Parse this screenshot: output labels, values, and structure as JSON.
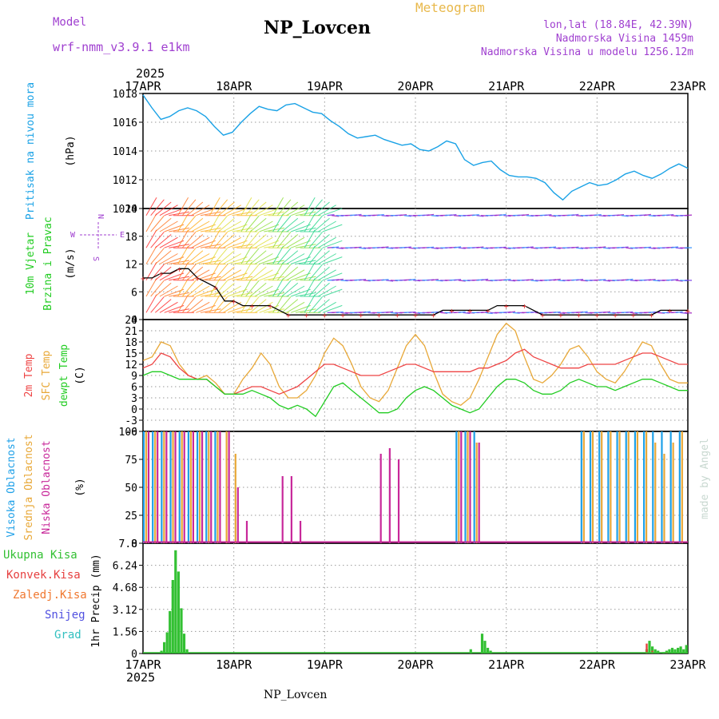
{
  "header": {
    "model_label": "Model",
    "model_name": "wrf-nmm_v3.9.1  e1km",
    "station": "NP_Lovcen",
    "app_title": "Meteogram",
    "lonlat": "lon,lat (18.84E, 42.39N)",
    "altitude": "Nadmorska Visina 1459m",
    "model_altitude": "Nadmorska Visina u modelu 1256.12m"
  },
  "footer": {
    "station": "NP_Lovcen",
    "watermark": "made by Angel"
  },
  "time_axis": {
    "year": "2025",
    "ticks": [
      "17APR",
      "18APR",
      "19APR",
      "20APR",
      "21APR",
      "22APR",
      "23APR"
    ]
  },
  "panel_labels": {
    "pressure": [
      "Pritisak na nivou mora"
    ],
    "pressure_unit": "(hPa)",
    "wind": [
      "10m Vjetar",
      "Brzina i Pravac"
    ],
    "wind_unit": "(m/s)",
    "compass": {
      "n": "N",
      "s": "S",
      "e": "E",
      "w": "W"
    },
    "temp": [
      "2m Temp",
      "SFC Temp",
      "dewpt Temp"
    ],
    "temp_unit": "(C)",
    "cloud": [
      "Visoka Oblacnost",
      "Srednja Oblacnost",
      "Niska Oblacnost"
    ],
    "cloud_unit": "(%)",
    "precip_legend": [
      "Ukupna Kisa",
      "Konvek.Kisa",
      "Zaledj.Kisa",
      "Snijeg",
      "Grad"
    ],
    "precip_unit": "1hr Precip (mm)"
  },
  "colors": {
    "pressure": "#1aa2e6",
    "temp2m": "#ee4444",
    "sfc": "#e8a838",
    "dewpt": "#22cc22",
    "cloud_high": "#1ea0e8",
    "cloud_mid": "#e8a838",
    "cloud_low": "#c8289a",
    "precip_total": "#33c033",
    "precip_conv": "#e64040",
    "precip_frz": "#f07830",
    "precip_snow": "#5050e0",
    "precip_hail": "#33c0c0",
    "model": "#a040d0",
    "title_accent": "#e8b84a"
  },
  "chart_data": [
    {
      "type": "line",
      "panel": "pressure",
      "ylim": [
        1010,
        1018
      ],
      "yticks": [
        "1018",
        "1016",
        "1014",
        "1012",
        "1010"
      ],
      "grid": true,
      "series": [
        {
          "values": [
            1017.9,
            1017.0,
            1016.2,
            1016.4,
            1016.8,
            1017.0,
            1016.8,
            1016.4,
            1015.7,
            1015.1,
            1015.3,
            1016.0,
            1016.6,
            1017.1,
            1016.9,
            1016.8,
            1017.2,
            1017.3,
            1017.0,
            1016.7,
            1016.6,
            1016.1,
            1015.7,
            1015.2,
            1014.9,
            1015.0,
            1015.1,
            1014.8,
            1014.6,
            1014.4,
            1014.5,
            1014.1,
            1014.0,
            1014.3,
            1014.7,
            1014.5,
            1013.4,
            1013.0,
            1013.2,
            1013.3,
            1012.7,
            1012.3,
            1012.2,
            1012.2,
            1012.1,
            1011.8,
            1011.1,
            1010.6,
            1011.2,
            1011.5,
            1011.8,
            1011.6,
            1011.7,
            1012.0,
            1012.4,
            1012.6,
            1012.3,
            1012.1,
            1012.4,
            1012.8,
            1013.1,
            1012.8
          ]
        }
      ]
    },
    {
      "type": "line",
      "panel": "wind",
      "ylim": [
        0,
        24
      ],
      "yticks": [
        "24",
        "18",
        "12",
        "6",
        "0"
      ],
      "grid": true,
      "series": [
        {
          "values": [
            9,
            9,
            10,
            10,
            11,
            11,
            9,
            8,
            7,
            4,
            4,
            3,
            3,
            3,
            3,
            2,
            1,
            1,
            1,
            1,
            1,
            1,
            1,
            1,
            1,
            1,
            1,
            1,
            1,
            1,
            1,
            1,
            1,
            2,
            2,
            2,
            2,
            2,
            2,
            3,
            3,
            3,
            3,
            2,
            1,
            1,
            1,
            1,
            1,
            1,
            1,
            1,
            1,
            1,
            1,
            1,
            1,
            2,
            2,
            2,
            2
          ]
        }
      ]
    },
    {
      "type": "line",
      "panel": "temperature",
      "ylim": [
        -6,
        24
      ],
      "yticks": [
        "24",
        "21",
        "18",
        "15",
        "12",
        "9",
        "6",
        "3",
        "0",
        "-3",
        "-6"
      ],
      "grid": true,
      "series": [
        {
          "name": "2m Temp",
          "values": [
            11,
            12,
            15,
            14,
            11,
            9,
            8,
            8,
            6,
            4,
            4,
            5,
            6,
            6,
            5,
            4,
            5,
            6,
            8,
            10,
            12,
            12,
            11,
            10,
            9,
            9,
            9,
            10,
            11,
            12,
            12,
            11,
            10,
            10,
            10,
            10,
            10,
            11,
            11,
            12,
            13,
            15,
            16,
            14,
            13,
            12,
            11,
            11,
            11,
            12,
            12,
            12,
            12,
            13,
            14,
            15,
            15,
            14,
            13,
            12,
            12
          ]
        },
        {
          "name": "SFC Temp",
          "values": [
            13,
            14,
            18,
            17,
            12,
            9,
            8,
            9,
            7,
            4,
            4,
            8,
            11,
            15,
            12,
            6,
            3,
            3,
            5,
            9,
            15,
            19,
            17,
            12,
            6,
            3,
            2,
            5,
            11,
            17,
            20,
            17,
            10,
            4,
            2,
            1,
            3,
            8,
            14,
            20,
            23,
            21,
            14,
            8,
            7,
            9,
            12,
            16,
            17,
            14,
            10,
            8,
            7,
            10,
            14,
            18,
            17,
            12,
            8,
            7,
            7
          ]
        },
        {
          "name": "dewpt Temp",
          "values": [
            9,
            10,
            10,
            9,
            8,
            8,
            8,
            8,
            6,
            4,
            4,
            4,
            5,
            4,
            3,
            1,
            0,
            1,
            0,
            -2,
            2,
            6,
            7,
            5,
            3,
            1,
            -1,
            -1,
            0,
            3,
            5,
            6,
            5,
            3,
            1,
            0,
            -1,
            0,
            3,
            6,
            8,
            8,
            7,
            5,
            4,
            4,
            5,
            7,
            8,
            7,
            6,
            6,
            5,
            6,
            7,
            8,
            8,
            7,
            6,
            5,
            5
          ]
        }
      ]
    },
    {
      "type": "bar",
      "panel": "cloud",
      "ylim": [
        0,
        100
      ],
      "yticks": [
        "100",
        "75",
        "50",
        "25",
        "0"
      ],
      "grid": true,
      "series": [
        {
          "name": "Visoka Oblacnost",
          "values": [
            100,
            100,
            100,
            100,
            100,
            100,
            100,
            100,
            100,
            0,
            0,
            0,
            0,
            0,
            0,
            0,
            0,
            0,
            0,
            0,
            0,
            0,
            0,
            0,
            0,
            0,
            0,
            0,
            0,
            0,
            0,
            0,
            0,
            0,
            0,
            100,
            100,
            100,
            0,
            0,
            0,
            0,
            0,
            0,
            0,
            0,
            0,
            0,
            0,
            100,
            100,
            100,
            100,
            100,
            100,
            100,
            100,
            100,
            100,
            100,
            100
          ]
        },
        {
          "name": "Srednja Oblacnost",
          "values": [
            100,
            100,
            100,
            100,
            100,
            100,
            100,
            100,
            100,
            100,
            80,
            0,
            0,
            0,
            0,
            0,
            0,
            0,
            0,
            0,
            0,
            0,
            0,
            0,
            0,
            0,
            0,
            0,
            0,
            0,
            0,
            0,
            0,
            0,
            0,
            100,
            100,
            90,
            0,
            0,
            0,
            0,
            0,
            0,
            0,
            0,
            0,
            0,
            0,
            100,
            100,
            100,
            100,
            100,
            100,
            100,
            100,
            90,
            80,
            90,
            100
          ]
        },
        {
          "name": "Niska Oblacnost",
          "values": [
            100,
            100,
            100,
            100,
            100,
            100,
            100,
            100,
            100,
            100,
            50,
            20,
            0,
            0,
            0,
            60,
            60,
            20,
            0,
            0,
            0,
            0,
            0,
            0,
            0,
            0,
            80,
            85,
            75,
            0,
            0,
            0,
            0,
            0,
            0,
            100,
            100,
            90,
            0,
            0,
            0,
            0,
            0,
            0,
            0,
            0,
            0,
            0,
            0,
            0,
            0,
            0,
            0,
            0,
            0,
            0,
            0,
            0,
            0,
            0,
            0
          ]
        }
      ]
    },
    {
      "type": "bar",
      "panel": "precipitation",
      "ylim": [
        0,
        7.8
      ],
      "yticks": [
        "7.8",
        "6.24",
        "4.68",
        "3.12",
        "1.56",
        "0"
      ],
      "grid": true,
      "series": [
        {
          "name": "Ukupna Kisa",
          "values": [
            0,
            0,
            0,
            0,
            0,
            0,
            0.2,
            0.8,
            1.5,
            3.0,
            5.2,
            7.3,
            5.8,
            3.2,
            1.4,
            0.3,
            0,
            0,
            0,
            0,
            0,
            0,
            0,
            0,
            0,
            0,
            0,
            0,
            0,
            0,
            0,
            0,
            0,
            0,
            0,
            0,
            0,
            0,
            0,
            0,
            0,
            0,
            0,
            0,
            0,
            0,
            0,
            0,
            0,
            0,
            0,
            0,
            0,
            0,
            0,
            0,
            0,
            0,
            0,
            0,
            0,
            0,
            0,
            0,
            0,
            0,
            0,
            0,
            0,
            0,
            0,
            0,
            0,
            0,
            0,
            0,
            0,
            0,
            0,
            0,
            0,
            0,
            0,
            0,
            0,
            0,
            0,
            0,
            0,
            0,
            0,
            0,
            0,
            0,
            0,
            0,
            0,
            0,
            0,
            0,
            0,
            0,
            0,
            0,
            0,
            0,
            0,
            0,
            0,
            0,
            0,
            0,
            0,
            0,
            0,
            0.3,
            0,
            0,
            0,
            1.4,
            0.9,
            0.4,
            0.2,
            0,
            0,
            0,
            0,
            0,
            0,
            0,
            0,
            0,
            0,
            0,
            0,
            0,
            0,
            0,
            0,
            0,
            0,
            0,
            0,
            0,
            0,
            0,
            0,
            0,
            0,
            0,
            0,
            0,
            0,
            0,
            0,
            0,
            0,
            0,
            0,
            0,
            0,
            0,
            0,
            0,
            0,
            0,
            0,
            0,
            0,
            0,
            0,
            0,
            0,
            0,
            0,
            0,
            0,
            0.3,
            0.9,
            0.5,
            0.3,
            0.2,
            0,
            0.1,
            0.2,
            0.3,
            0.4,
            0.3,
            0.4,
            0.5,
            0.3,
            0.6
          ]
        },
        {
          "name": "Konvek.Kisa",
          "values": [
            0,
            0,
            0,
            0,
            0,
            0,
            0,
            0,
            0,
            0,
            0,
            0,
            0,
            0,
            0,
            0,
            0,
            0,
            0,
            0,
            0,
            0,
            0,
            0,
            0,
            0,
            0,
            0,
            0,
            0,
            0,
            0,
            0,
            0,
            0,
            0,
            0,
            0,
            0,
            0,
            0,
            0,
            0,
            0,
            0,
            0,
            0,
            0,
            0,
            0,
            0,
            0,
            0,
            0,
            0,
            0,
            0,
            0,
            0,
            0,
            0,
            0,
            0,
            0,
            0,
            0,
            0,
            0,
            0,
            0,
            0,
            0,
            0,
            0,
            0,
            0,
            0,
            0,
            0,
            0,
            0,
            0,
            0,
            0,
            0,
            0,
            0,
            0,
            0,
            0,
            0,
            0,
            0,
            0,
            0,
            0,
            0,
            0,
            0,
            0,
            0,
            0,
            0,
            0,
            0,
            0,
            0,
            0,
            0,
            0,
            0,
            0,
            0,
            0,
            0,
            0,
            0,
            0,
            0,
            0,
            0,
            0,
            0,
            0,
            0,
            0,
            0,
            0,
            0,
            0,
            0,
            0,
            0,
            0,
            0,
            0,
            0,
            0,
            0,
            0,
            0,
            0,
            0,
            0,
            0,
            0,
            0,
            0,
            0,
            0,
            0,
            0,
            0,
            0,
            0,
            0,
            0,
            0,
            0,
            0,
            0,
            0,
            0,
            0,
            0,
            0,
            0,
            0,
            0,
            0,
            0,
            0,
            0,
            0,
            0,
            0,
            0,
            0.7,
            0,
            0.2,
            0,
            0,
            0,
            0,
            0.1,
            0,
            0,
            0,
            0,
            0,
            0
          ]
        }
      ]
    }
  ]
}
